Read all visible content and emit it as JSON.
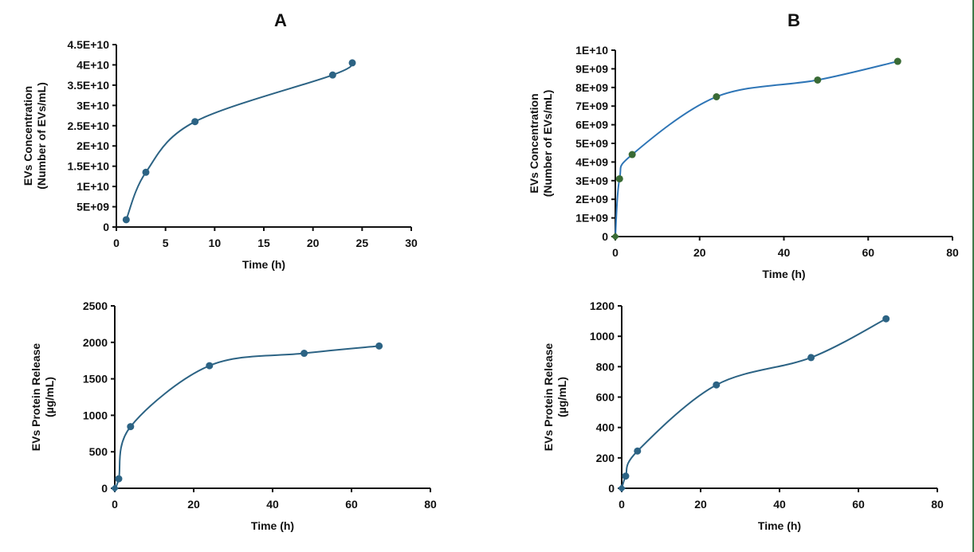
{
  "panels": [
    {
      "id": "A",
      "label": "A"
    },
    {
      "id": "B",
      "label": "B"
    }
  ],
  "colors": {
    "line_default": "#2c6384",
    "marker_default": "#2c6384",
    "line_b_top": "#2e75b6",
    "marker_b_top": "#3a6b35",
    "axis": "#111111",
    "edge_strip": "#3f7a4a"
  },
  "chart_data": [
    {
      "id": "A-concentration",
      "panel": "A",
      "type": "line",
      "smooth": true,
      "title": "",
      "xlabel": "Time (h)",
      "ylabel": [
        "EVs Concentration",
        "(Number of EVs/mL)"
      ],
      "xlim": [
        0,
        30
      ],
      "ylim": [
        0,
        45000000000
      ],
      "xticks": [
        0,
        5,
        10,
        15,
        20,
        25,
        30
      ],
      "xtick_labels": [
        "0",
        "5",
        "10",
        "15",
        "20",
        "25",
        "30"
      ],
      "yticks": [
        0,
        5000000000,
        10000000000,
        15000000000,
        20000000000,
        25000000000,
        30000000000,
        35000000000,
        40000000000,
        45000000000
      ],
      "ytick_labels": [
        "0",
        "5E+09",
        "1E+10",
        "1.5E+10",
        "2E+10",
        "2.5E+10",
        "3E+10",
        "3.5E+10",
        "4E+10",
        "4.5E+10"
      ],
      "grid": false,
      "series": [
        {
          "name": "EVs Concentration",
          "x": [
            1,
            3,
            8,
            22,
            24
          ],
          "y": [
            1800000000,
            13500000000,
            26000000000,
            37500000000,
            40500000000
          ]
        }
      ]
    },
    {
      "id": "B-concentration",
      "panel": "B",
      "type": "line",
      "smooth": true,
      "title": "",
      "xlabel": "Time (h)",
      "ylabel": [
        "EVs Concentration",
        "(Number of EVs/mL)"
      ],
      "xlim": [
        0,
        80
      ],
      "ylim": [
        0,
        10000000000
      ],
      "xticks": [
        0,
        20,
        40,
        60,
        80
      ],
      "xtick_labels": [
        "0",
        "20",
        "40",
        "60",
        "80"
      ],
      "yticks": [
        0,
        1000000000,
        2000000000,
        3000000000,
        4000000000,
        5000000000,
        6000000000,
        7000000000,
        8000000000,
        9000000000,
        10000000000
      ],
      "ytick_labels": [
        "0",
        "1E+09",
        "2E+09",
        "3E+09",
        "4E+09",
        "5E+09",
        "6E+09",
        "7E+09",
        "8E+09",
        "9E+09",
        "1E+10"
      ],
      "grid": false,
      "series": [
        {
          "name": "EVs Concentration",
          "x": [
            0,
            1,
            4,
            24,
            48,
            67
          ],
          "y": [
            0,
            3100000000,
            4400000000,
            7500000000,
            8400000000,
            9400000000
          ]
        }
      ]
    },
    {
      "id": "A-protein",
      "panel": "A",
      "type": "line",
      "smooth": true,
      "title": "",
      "xlabel": "Time (h)",
      "ylabel": [
        "EVs Protein Release",
        "(µg/mL)"
      ],
      "xlim": [
        0,
        80
      ],
      "ylim": [
        0,
        2500
      ],
      "xticks": [
        0,
        20,
        40,
        60,
        80
      ],
      "xtick_labels": [
        "0",
        "20",
        "40",
        "60",
        "80"
      ],
      "yticks": [
        0,
        500,
        1000,
        1500,
        2000,
        2500
      ],
      "ytick_labels": [
        "0",
        "500",
        "1000",
        "1500",
        "2000",
        "2500"
      ],
      "grid": false,
      "series": [
        {
          "name": "EVs Protein Release",
          "x": [
            0,
            1,
            4,
            24,
            48,
            67
          ],
          "y": [
            0,
            130,
            845,
            1680,
            1850,
            1950
          ]
        }
      ]
    },
    {
      "id": "B-protein",
      "panel": "B",
      "type": "line",
      "smooth": true,
      "title": "",
      "xlabel": "Time (h)",
      "ylabel": [
        "EVs Protein Release",
        "(µg/mL)"
      ],
      "xlim": [
        0,
        80
      ],
      "ylim": [
        0,
        1200
      ],
      "xticks": [
        0,
        20,
        40,
        60,
        80
      ],
      "xtick_labels": [
        "0",
        "20",
        "40",
        "60",
        "80"
      ],
      "yticks": [
        0,
        200,
        400,
        600,
        800,
        1000,
        1200
      ],
      "ytick_labels": [
        "0",
        "200",
        "400",
        "600",
        "800",
        "1000",
        "1200"
      ],
      "grid": false,
      "series": [
        {
          "name": "EVs Protein Release",
          "x": [
            0,
            1,
            4,
            24,
            48,
            67
          ],
          "y": [
            0,
            80,
            245,
            680,
            860,
            1115
          ]
        }
      ]
    }
  ]
}
